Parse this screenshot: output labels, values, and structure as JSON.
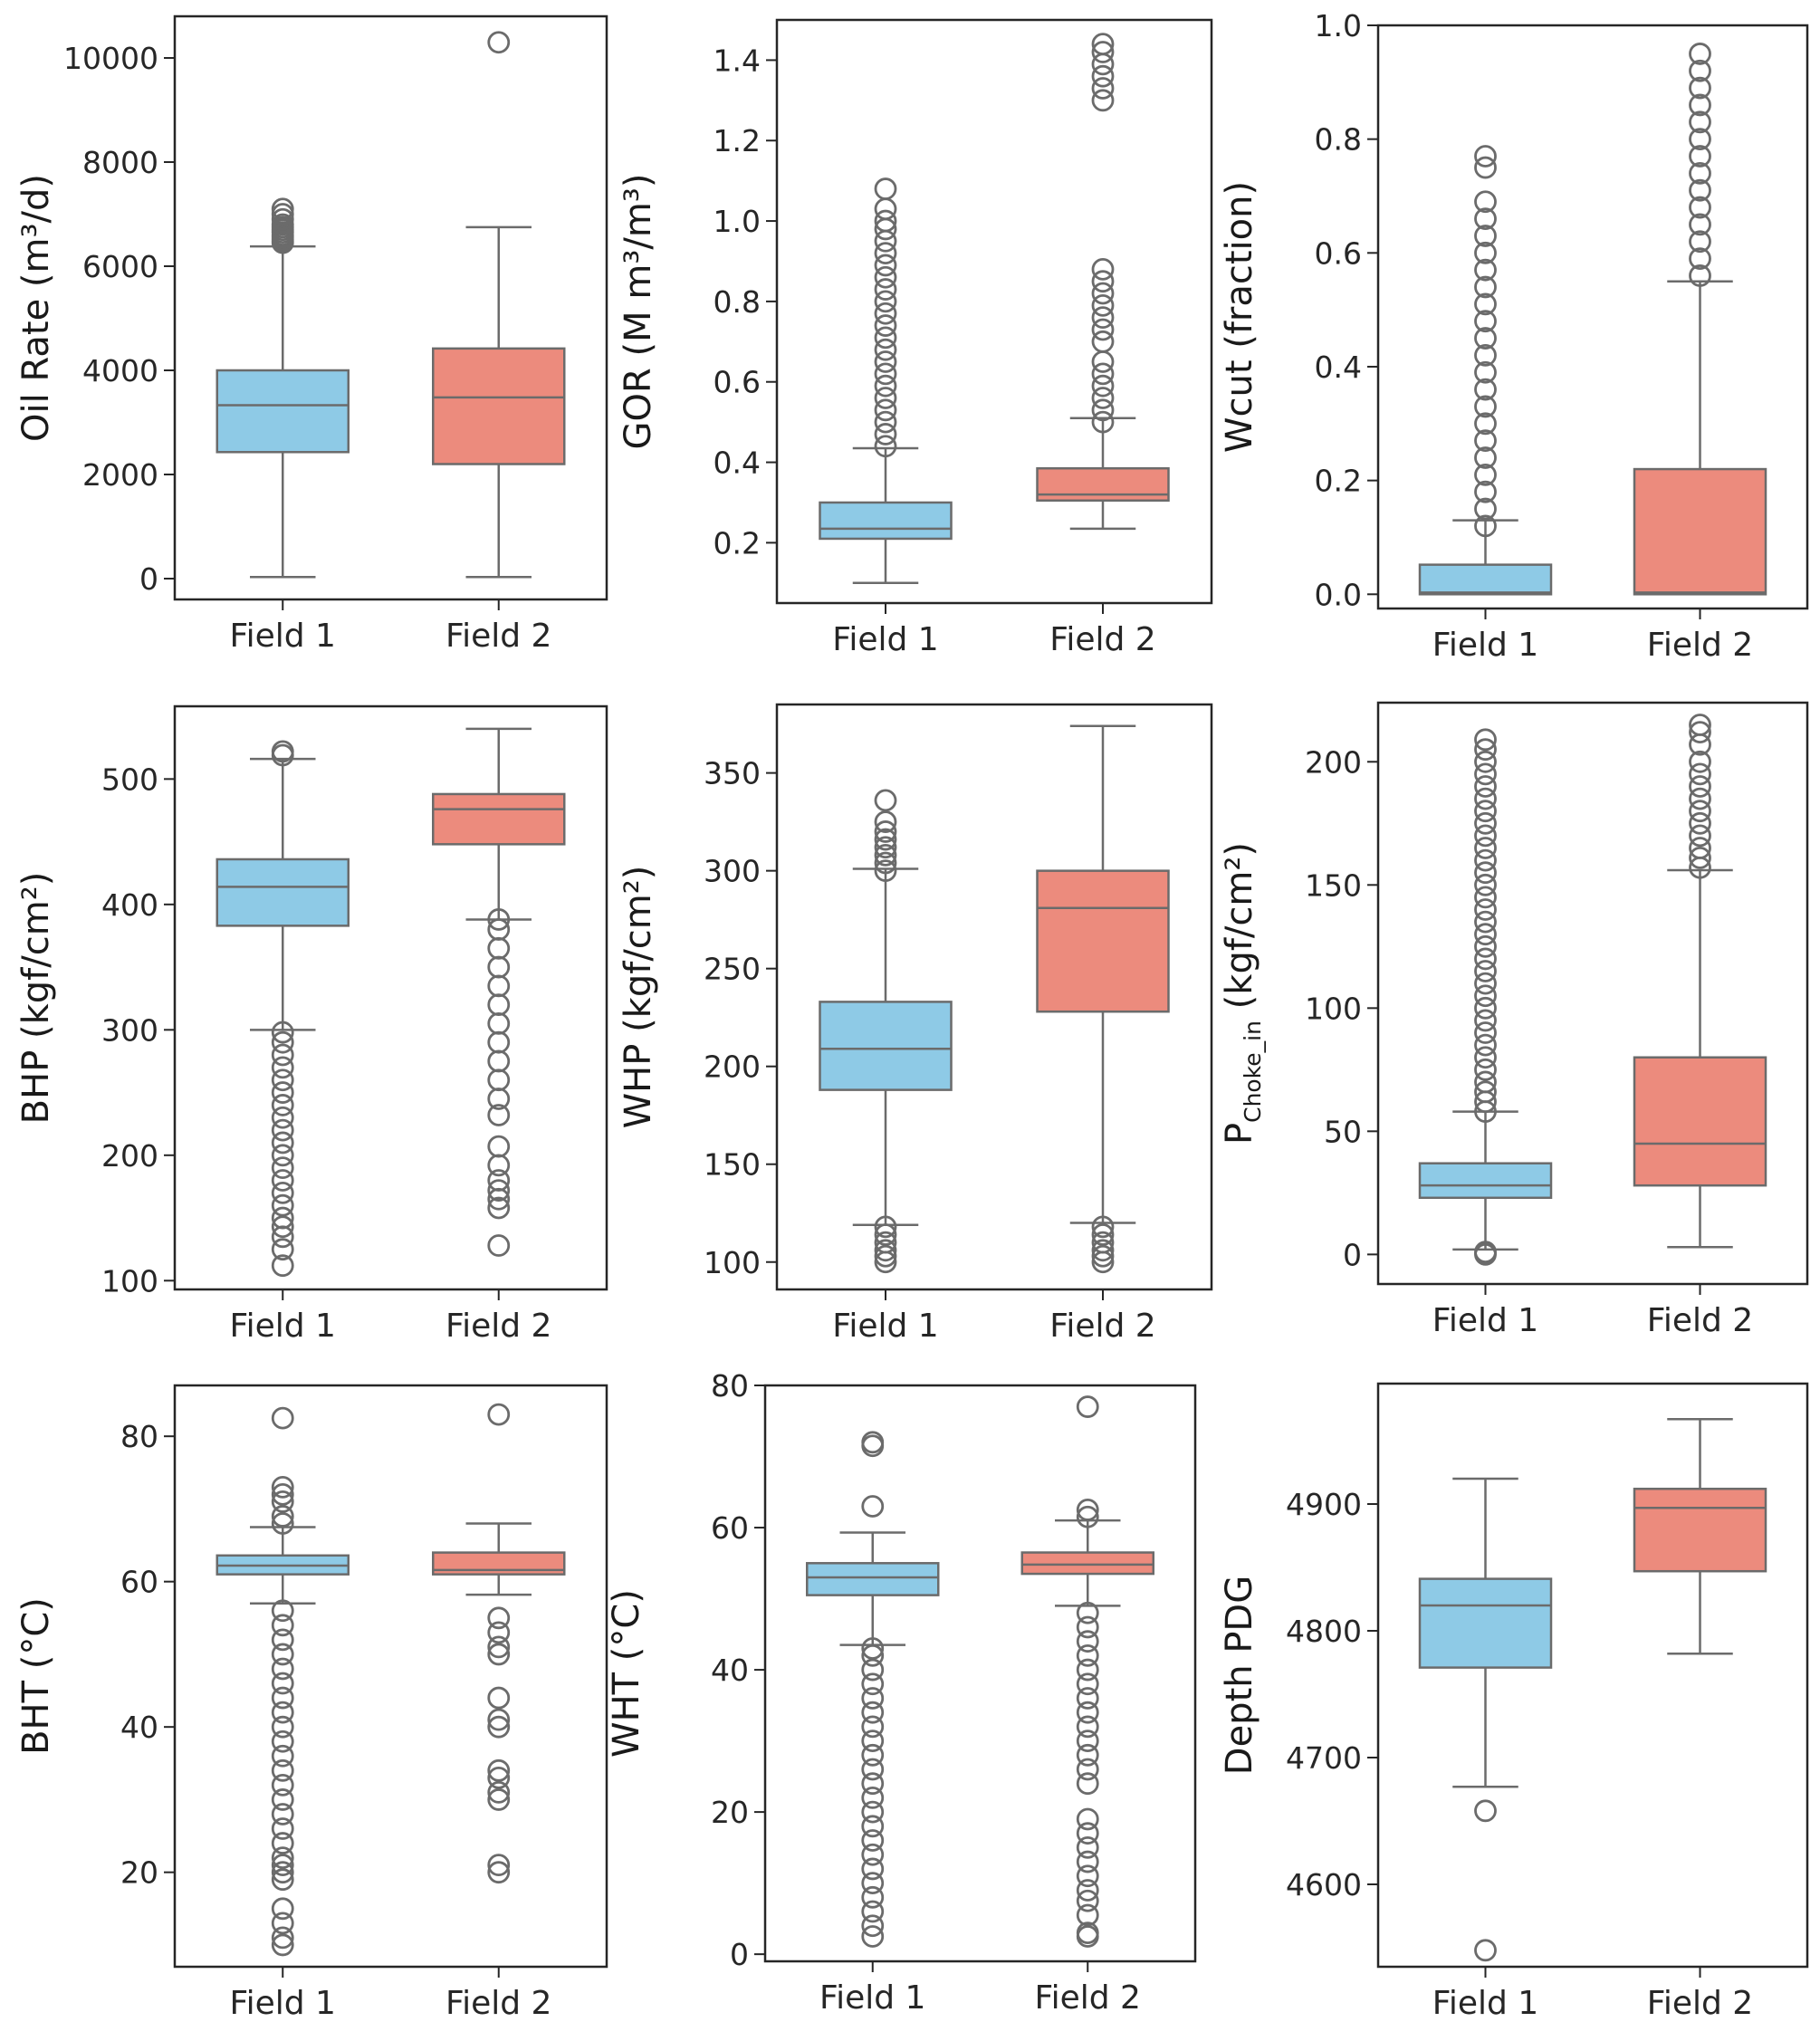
{
  "colors": {
    "field1_box": "#8ecae6",
    "field2_box": "#ec8b7d",
    "line": "#6b6b6b",
    "outlier_edge": "#6b6b6b",
    "frame": "#262626"
  },
  "chart_data": [
    {
      "type": "box",
      "ylabel": "Oil Rate (m³/d)",
      "ylim": [
        -400,
        10800
      ],
      "yticks": [
        0,
        2000,
        4000,
        6000,
        8000,
        10000
      ],
      "categories": [
        "Field 1",
        "Field 2"
      ],
      "series": [
        {
          "name": "Field 1",
          "whisker_low": 30,
          "q1": 2430,
          "median": 3330,
          "q3": 4000,
          "whisker_high": 6380,
          "outliers": [
            6450,
            6480,
            6520,
            6560,
            6600,
            6650,
            6700,
            6750,
            6800,
            6900,
            7000,
            7100
          ]
        },
        {
          "name": "Field 2",
          "whisker_low": 30,
          "q1": 2200,
          "median": 3480,
          "q3": 4420,
          "whisker_high": 6750,
          "outliers": [
            10300
          ]
        }
      ]
    },
    {
      "type": "box",
      "ylabel": "GOR (M m³/m³)",
      "ylim": [
        0.05,
        1.5
      ],
      "yticks": [
        0.2,
        0.4,
        0.6,
        0.8,
        1.0,
        1.2,
        1.4
      ],
      "categories": [
        "Field 1",
        "Field 2"
      ],
      "series": [
        {
          "name": "Field 1",
          "whisker_low": 0.1,
          "q1": 0.21,
          "median": 0.235,
          "q3": 0.3,
          "whisker_high": 0.435,
          "outliers": [
            0.44,
            0.47,
            0.5,
            0.53,
            0.56,
            0.59,
            0.62,
            0.65,
            0.68,
            0.71,
            0.74,
            0.77,
            0.8,
            0.83,
            0.86,
            0.89,
            0.92,
            0.95,
            0.98,
            1.0,
            1.03,
            1.08
          ]
        },
        {
          "name": "Field 2",
          "whisker_low": 0.235,
          "q1": 0.305,
          "median": 0.32,
          "q3": 0.385,
          "whisker_high": 0.51,
          "outliers": [
            0.5,
            0.53,
            0.56,
            0.59,
            0.62,
            0.65,
            0.7,
            0.73,
            0.76,
            0.79,
            0.82,
            0.85,
            0.88,
            1.3,
            1.33,
            1.36,
            1.39,
            1.42,
            1.44
          ]
        }
      ]
    },
    {
      "type": "box",
      "ylabel": "Wcut (fraction)",
      "ylim": [
        -0.025,
        1.0
      ],
      "yticks": [
        0.0,
        0.2,
        0.4,
        0.6,
        0.8,
        1.0
      ],
      "categories": [
        "Field 1",
        "Field 2"
      ],
      "series": [
        {
          "name": "Field 1",
          "whisker_low": 0.0,
          "q1": 0.0,
          "median": 0.003,
          "q3": 0.052,
          "whisker_high": 0.13,
          "outliers": [
            0.12,
            0.15,
            0.18,
            0.21,
            0.24,
            0.27,
            0.3,
            0.33,
            0.36,
            0.39,
            0.42,
            0.45,
            0.48,
            0.51,
            0.54,
            0.57,
            0.6,
            0.63,
            0.66,
            0.69,
            0.75,
            0.77
          ]
        },
        {
          "name": "Field 2",
          "whisker_low": 0.0,
          "q1": 0.0,
          "median": 0.003,
          "q3": 0.22,
          "whisker_high": 0.55,
          "outliers": [
            0.56,
            0.59,
            0.62,
            0.65,
            0.68,
            0.71,
            0.74,
            0.77,
            0.8,
            0.83,
            0.86,
            0.89,
            0.92,
            0.95
          ]
        }
      ]
    },
    {
      "type": "box",
      "ylabel": "BHP (kgf/cm²)",
      "ylim": [
        93,
        558
      ],
      "yticks": [
        100,
        200,
        300,
        400,
        500
      ],
      "categories": [
        "Field 1",
        "Field 2"
      ],
      "series": [
        {
          "name": "Field 1",
          "whisker_low": 300,
          "q1": 383,
          "median": 414,
          "q3": 436,
          "whisker_high": 516,
          "outliers": [
            112,
            125,
            135,
            143,
            150,
            160,
            170,
            180,
            190,
            200,
            210,
            220,
            230,
            240,
            250,
            260,
            270,
            280,
            290,
            298,
            519,
            522
          ]
        },
        {
          "name": "Field 2",
          "whisker_low": 388,
          "q1": 448,
          "median": 476,
          "q3": 488,
          "whisker_high": 540,
          "outliers": [
            128,
            158,
            165,
            172,
            180,
            192,
            207,
            232,
            245,
            260,
            275,
            290,
            305,
            320,
            335,
            350,
            365,
            380,
            388
          ]
        }
      ]
    },
    {
      "type": "box",
      "ylabel": "WHP (kgf/cm²)",
      "ylim": [
        86,
        385
      ],
      "yticks": [
        100,
        150,
        200,
        250,
        300,
        350
      ],
      "categories": [
        "Field 1",
        "Field 2"
      ],
      "series": [
        {
          "name": "Field 1",
          "whisker_low": 119,
          "q1": 188,
          "median": 209,
          "q3": 233,
          "whisker_high": 301,
          "outliers": [
            100,
            103,
            106,
            110,
            114,
            118,
            300,
            304,
            308,
            312,
            316,
            320,
            325,
            336
          ]
        },
        {
          "name": "Field 2",
          "whisker_low": 120,
          "q1": 228,
          "median": 281,
          "q3": 300,
          "whisker_high": 374,
          "outliers": [
            100,
            103,
            106,
            110,
            114,
            118
          ]
        }
      ]
    },
    {
      "type": "box",
      "ylabel": "P",
      "ylabel_subscript": "Choke_in",
      "ylabel_suffix": " (kgf/cm²)",
      "ylim": [
        -12,
        224
      ],
      "yticks": [
        0,
        50,
        100,
        150,
        200
      ],
      "categories": [
        "Field 1",
        "Field 2"
      ],
      "series": [
        {
          "name": "Field 1",
          "whisker_low": 2,
          "q1": 23,
          "median": 28,
          "q3": 37,
          "whisker_high": 58,
          "outliers": [
            0,
            0.5,
            1,
            58,
            62,
            66,
            70,
            75,
            80,
            85,
            90,
            95,
            100,
            105,
            110,
            115,
            120,
            125,
            130,
            135,
            140,
            145,
            150,
            155,
            160,
            165,
            170,
            175,
            180,
            185,
            190,
            195,
            200,
            205,
            209
          ]
        },
        {
          "name": "Field 2",
          "whisker_low": 3,
          "q1": 28,
          "median": 45,
          "q3": 80,
          "whisker_high": 156,
          "outliers": [
            157,
            161,
            165,
            170,
            175,
            180,
            185,
            190,
            195,
            200,
            207,
            212,
            215
          ]
        }
      ]
    },
    {
      "type": "box",
      "ylabel": "BHT (°C)",
      "ylim": [
        7,
        87
      ],
      "yticks": [
        20,
        40,
        60,
        80
      ],
      "categories": [
        "Field 1",
        "Field 2"
      ],
      "series": [
        {
          "name": "Field 1",
          "whisker_low": 57,
          "q1": 61,
          "median": 62.2,
          "q3": 63.6,
          "whisker_high": 67.5,
          "outliers": [
            10,
            11,
            13,
            15,
            19,
            20,
            21,
            22,
            24,
            26,
            28,
            30,
            32,
            34,
            36,
            38,
            40,
            42,
            44,
            46,
            48,
            50,
            52,
            54,
            56,
            68,
            69,
            71,
            72,
            73,
            82.5
          ]
        },
        {
          "name": "Field 2",
          "whisker_low": 58.2,
          "q1": 61,
          "median": 61.6,
          "q3": 64,
          "whisker_high": 68,
          "outliers": [
            20,
            21,
            30,
            31,
            33,
            34,
            40,
            41,
            44,
            50,
            51,
            53,
            55,
            83
          ]
        }
      ]
    },
    {
      "type": "box",
      "ylabel": "WHT (°C)",
      "ylim": [
        -1,
        80
      ],
      "yticks": [
        0,
        20,
        40,
        60,
        80
      ],
      "categories": [
        "Field 1",
        "Field 2"
      ],
      "series": [
        {
          "name": "Field 1",
          "whisker_low": 43.5,
          "q1": 50.5,
          "median": 53,
          "q3": 55,
          "whisker_high": 59.3,
          "outliers": [
            2.5,
            4,
            6,
            8,
            10,
            12,
            14,
            16,
            18,
            20,
            22,
            24,
            26,
            28,
            30,
            32,
            34,
            36,
            38,
            40,
            42,
            43,
            63,
            71.5,
            72
          ]
        },
        {
          "name": "Field 2",
          "whisker_low": 49,
          "q1": 53.5,
          "median": 54.8,
          "q3": 56.5,
          "whisker_high": 61,
          "outliers": [
            2.5,
            3,
            5.5,
            7.5,
            9,
            11,
            13,
            15,
            17,
            19,
            24,
            26,
            28,
            30,
            32,
            34,
            36,
            38,
            40,
            42,
            44,
            46,
            48,
            61.5,
            62.5,
            77
          ]
        }
      ]
    },
    {
      "type": "box",
      "ylabel": "Depth PDG",
      "ylim": [
        4535,
        4995
      ],
      "yticks": [
        4600,
        4700,
        4800,
        4900
      ],
      "categories": [
        "Field 1",
        "Field 2"
      ],
      "series": [
        {
          "name": "Field 1",
          "whisker_low": 4677,
          "q1": 4771,
          "median": 4820,
          "q3": 4841,
          "whisker_high": 4920,
          "outliers": [
            4548,
            4658
          ]
        },
        {
          "name": "Field 2",
          "whisker_low": 4782,
          "q1": 4847,
          "median": 4897,
          "q3": 4912,
          "whisker_high": 4967,
          "outliers": []
        }
      ]
    }
  ]
}
